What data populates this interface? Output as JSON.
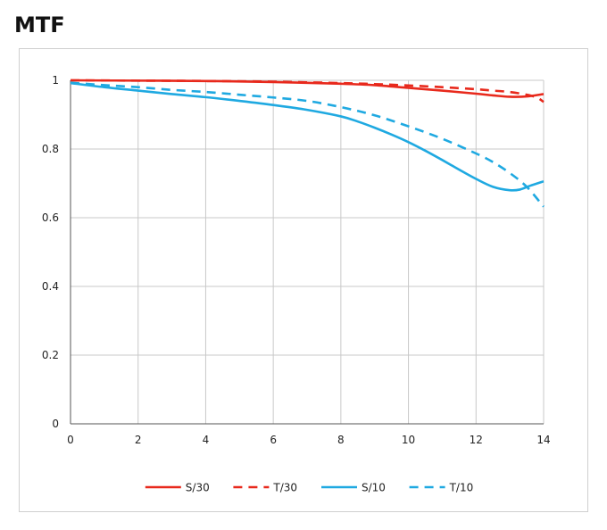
{
  "title": "MTF",
  "chart_data": {
    "type": "line",
    "title": "MTF",
    "xlabel": "",
    "ylabel": "",
    "xlim": [
      0,
      14
    ],
    "ylim": [
      0,
      1
    ],
    "xticks": [
      0,
      2,
      4,
      6,
      8,
      10,
      12,
      14
    ],
    "yticks": [
      0,
      0.2,
      0.4,
      0.6,
      0.8,
      1
    ],
    "grid": true,
    "legend_position": "bottom",
    "series": [
      {
        "name": "S/30",
        "color": "#e8291c",
        "dash": "solid",
        "x": [
          0,
          2,
          4,
          6,
          8,
          9,
          10,
          11,
          12,
          12.5,
          13,
          13.5,
          14
        ],
        "y": [
          1.0,
          0.999,
          0.998,
          0.995,
          0.99,
          0.986,
          0.978,
          0.97,
          0.961,
          0.956,
          0.952,
          0.953,
          0.96
        ]
      },
      {
        "name": "T/30",
        "color": "#e8291c",
        "dash": "dashed",
        "x": [
          0,
          2,
          4,
          6,
          8,
          9,
          10,
          11,
          12,
          12.5,
          13,
          13.5,
          13.8,
          14
        ],
        "y": [
          1.0,
          0.999,
          0.998,
          0.996,
          0.992,
          0.989,
          0.985,
          0.98,
          0.974,
          0.97,
          0.966,
          0.958,
          0.95,
          0.937
        ]
      },
      {
        "name": "S/10",
        "color": "#1fa9e1",
        "dash": "solid",
        "x": [
          0,
          1,
          2,
          3,
          4,
          5,
          6,
          7,
          8,
          8.5,
          9,
          9.5,
          10,
          10.5,
          11,
          11.5,
          12,
          12.5,
          13,
          13.3,
          13.6,
          14
        ],
        "y": [
          0.992,
          0.98,
          0.97,
          0.96,
          0.951,
          0.94,
          0.928,
          0.914,
          0.895,
          0.88,
          0.862,
          0.842,
          0.82,
          0.795,
          0.768,
          0.74,
          0.713,
          0.69,
          0.68,
          0.682,
          0.693,
          0.706
        ]
      },
      {
        "name": "T/10",
        "color": "#1fa9e1",
        "dash": "dashed",
        "x": [
          0,
          1,
          2,
          3,
          4,
          5,
          6,
          7,
          8,
          9,
          10,
          11,
          12,
          12.5,
          13,
          13.5,
          14
        ],
        "y": [
          0.993,
          0.986,
          0.98,
          0.972,
          0.966,
          0.958,
          0.95,
          0.94,
          0.922,
          0.898,
          0.866,
          0.83,
          0.787,
          0.762,
          0.73,
          0.69,
          0.632
        ]
      }
    ]
  }
}
